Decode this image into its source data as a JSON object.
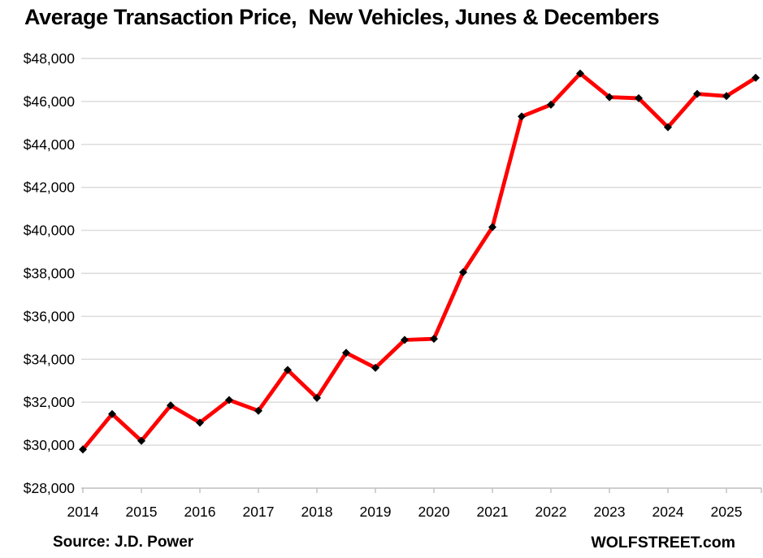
{
  "title": "Average Transaction Price,  New Vehicles, Junes & Decembers",
  "footer": {
    "source": "Source: J.D. Power",
    "brand": "WOLFSTREET.com"
  },
  "chart_data": {
    "type": "line",
    "title": "Average Transaction Price,  New Vehicles, Junes & Decembers",
    "xlabel": "",
    "ylabel": "",
    "legend": "none",
    "grid": "horizontal",
    "x_tick_labels": [
      "2014",
      "2015",
      "2016",
      "2017",
      "2018",
      "2019",
      "2020",
      "2021",
      "2022",
      "2023",
      "2024",
      "2025"
    ],
    "y_axis": {
      "min": 28000,
      "max": 48000,
      "step": 2000,
      "ticks": [
        {
          "value": 48000,
          "label": "$48,000"
        },
        {
          "value": 46000,
          "label": "$46,000"
        },
        {
          "value": 44000,
          "label": "$44,000"
        },
        {
          "value": 42000,
          "label": "$42,000"
        },
        {
          "value": 40000,
          "label": "$40,000"
        },
        {
          "value": 38000,
          "label": "$38,000"
        },
        {
          "value": 36000,
          "label": "$36,000"
        },
        {
          "value": 34000,
          "label": "$34,000"
        },
        {
          "value": 32000,
          "label": "$32,000"
        },
        {
          "value": 30000,
          "label": "$30,000"
        },
        {
          "value": 28000,
          "label": "$28,000"
        }
      ]
    },
    "series": [
      {
        "name": "Average transaction price, new vehicles",
        "color": "#FF0000",
        "marker_color": "#000000",
        "marker_shape": "diamond",
        "points": [
          {
            "period": "2014-06",
            "value": 29800
          },
          {
            "period": "2014-12",
            "value": 31450
          },
          {
            "period": "2015-06",
            "value": 30200
          },
          {
            "period": "2015-12",
            "value": 31850
          },
          {
            "period": "2016-06",
            "value": 31050
          },
          {
            "period": "2016-12",
            "value": 32100
          },
          {
            "period": "2017-06",
            "value": 31600
          },
          {
            "period": "2017-12",
            "value": 33500
          },
          {
            "period": "2018-06",
            "value": 32200
          },
          {
            "period": "2018-12",
            "value": 34300
          },
          {
            "period": "2019-06",
            "value": 33600
          },
          {
            "period": "2019-12",
            "value": 34900
          },
          {
            "period": "2020-06",
            "value": 34950
          },
          {
            "period": "2020-12",
            "value": 38050
          },
          {
            "period": "2021-06",
            "value": 40150
          },
          {
            "period": "2021-12",
            "value": 45300
          },
          {
            "period": "2022-06",
            "value": 45850
          },
          {
            "period": "2022-12",
            "value": 47300
          },
          {
            "period": "2023-06",
            "value": 46200
          },
          {
            "period": "2023-12",
            "value": 46150
          },
          {
            "period": "2024-06",
            "value": 44800
          },
          {
            "period": "2024-12",
            "value": 46350
          },
          {
            "period": "2025-06",
            "value": 46250
          },
          {
            "period": "2025-12",
            "value": 47100
          }
        ]
      }
    ],
    "colors": {
      "line": "#FF0000",
      "marker": "#000000",
      "gridline": "#D9D9D9",
      "axis": "#BFBFBF",
      "text": "#000000"
    }
  }
}
